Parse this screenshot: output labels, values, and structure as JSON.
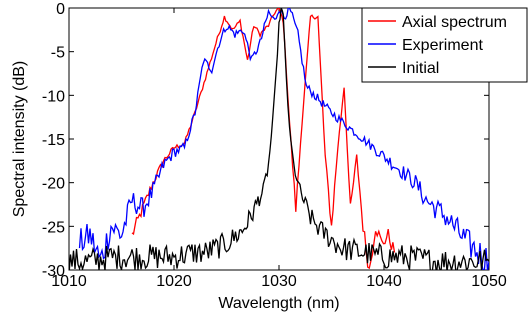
{
  "chart_data": {
    "type": "line",
    "xlabel": "Wavelength (nm)",
    "ylabel": "Spectral intensity (dB)",
    "xlim": [
      1010,
      1050
    ],
    "ylim": [
      -30,
      0
    ],
    "xticks": [
      1010,
      1020,
      1030,
      1040,
      1050
    ],
    "yticks": [
      0,
      -5,
      -10,
      -15,
      -20,
      -25,
      -30
    ],
    "grid": false,
    "legend_position": "top-right",
    "series": [
      {
        "name": "Axial spectrum",
        "color": "#ff0000",
        "x": [
          1016,
          1017,
          1018,
          1019,
          1020,
          1021,
          1022,
          1023,
          1024,
          1024.8,
          1025.6,
          1026.3,
          1027,
          1027.6,
          1028.2,
          1029,
          1029.6,
          1030,
          1030.4,
          1031,
          1031.6,
          1032.2,
          1033,
          1033.7,
          1034.4,
          1035,
          1035.6,
          1036.2,
          1036.8,
          1037.4,
          1038,
          1038.6,
          1039.2,
          1039.8,
          1040.4,
          1041
        ],
        "y": [
          -26,
          -23,
          -20,
          -17.5,
          -16,
          -15.5,
          -12,
          -8,
          -4,
          -1,
          -2.5,
          -1.5,
          -6,
          -2,
          -3,
          -2,
          -0.5,
          0,
          -1.5,
          -13,
          -23,
          -13,
          -1,
          -1,
          -17,
          -25,
          -16,
          -9,
          -23,
          -17,
          -25,
          -30,
          -25,
          -27,
          -26,
          -28
        ]
      },
      {
        "name": "Experiment",
        "color": "#0000ff",
        "x": [
          1011,
          1012,
          1013,
          1014,
          1015,
          1016,
          1017,
          1018,
          1019,
          1020,
          1021,
          1022,
          1022.8,
          1023.6,
          1024.3,
          1025,
          1025.8,
          1026.6,
          1027.4,
          1028.2,
          1029,
          1029.6,
          1030,
          1030.5,
          1031,
          1031.8,
          1032.6,
          1033.4,
          1034.2,
          1035,
          1036,
          1037,
          1038,
          1039,
          1040,
          1041,
          1042,
          1043,
          1044,
          1045,
          1046,
          1047,
          1048,
          1049,
          1050
        ],
        "y": [
          -27,
          -26,
          -29,
          -25,
          -26,
          -22,
          -23,
          -21,
          -18,
          -16.5,
          -16,
          -12,
          -6,
          -7,
          -4,
          -2,
          -3,
          -2.5,
          -6,
          -4,
          -0.5,
          -1.5,
          0,
          -1,
          0,
          -3,
          -9,
          -10,
          -11,
          -12,
          -13,
          -14,
          -15,
          -16,
          -17,
          -18,
          -19,
          -20,
          -22,
          -23,
          -24,
          -25.5,
          -27,
          -28,
          -29
        ]
      },
      {
        "name": "Initial",
        "color": "#000000",
        "x": [
          1010,
          1012,
          1014,
          1016,
          1018,
          1020,
          1022,
          1023,
          1024,
          1025,
          1026,
          1026.5,
          1027,
          1027.5,
          1028,
          1028.5,
          1029,
          1029.4,
          1029.7,
          1030,
          1030.2,
          1030.4,
          1030.7,
          1031,
          1031.4,
          1032,
          1032.5,
          1033,
          1034,
          1035,
          1036,
          1038,
          1040,
          1042,
          1045,
          1048,
          1050
        ],
        "y": [
          -29,
          -29,
          -28.5,
          -28.5,
          -28.5,
          -28.5,
          -28,
          -28,
          -27.5,
          -27,
          -26,
          -25.5,
          -24.5,
          -23.5,
          -22,
          -21,
          -18,
          -13,
          -8,
          -2,
          0,
          -1,
          -8,
          -14,
          -18,
          -21,
          -22.5,
          -24,
          -25.5,
          -26.5,
          -27.5,
          -28,
          -28.5,
          -28.5,
          -29,
          -29,
          -29
        ]
      }
    ]
  }
}
